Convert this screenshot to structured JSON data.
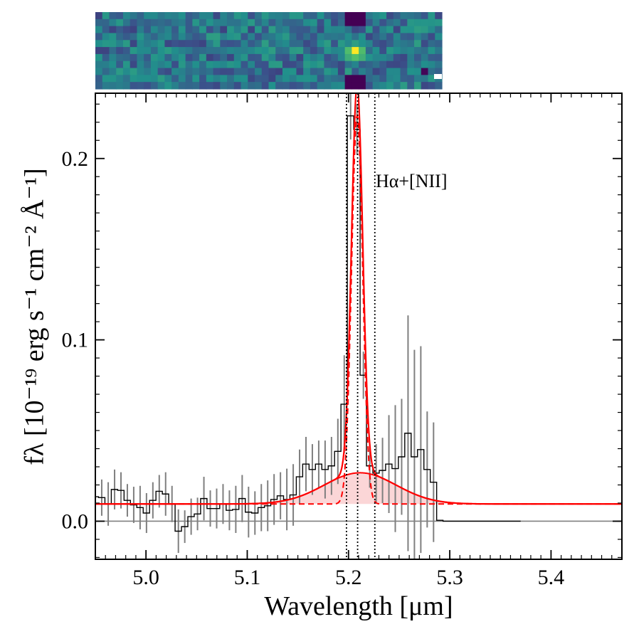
{
  "chart_data": {
    "type": "line",
    "title": "",
    "xlabel": "Wavelength [μm]",
    "ylabel": "f_λ [10^{-19} erg s^{-1} cm^{-2} Å^{-1}]",
    "ylabel_display": "fλ [10⁻¹⁹ erg s⁻¹ cm⁻² Å⁻¹]",
    "xlim": [
      4.95,
      5.47
    ],
    "ylim": [
      -0.021,
      0.236
    ],
    "x_ticks": [
      5.0,
      5.1,
      5.2,
      5.3,
      5.4
    ],
    "x_tick_labels": [
      "5.0",
      "5.1",
      "5.2",
      "5.3",
      "5.4"
    ],
    "y_ticks": [
      0.0,
      0.1,
      0.2
    ],
    "y_tick_labels": [
      "0.0",
      "0.1",
      "0.2"
    ],
    "annotation": "Hα+[NII]",
    "vertical_lines": [
      5.198,
      5.209,
      5.226
    ],
    "colors": {
      "data": "#000000",
      "error": "#7f7f7f",
      "model": "#ff0000",
      "broad_fill": "#f9c4c6",
      "zero_line": "#808080",
      "vline": "#000000"
    },
    "model": {
      "continuum": 0.0095,
      "narrow_amplitude": 0.214,
      "narrow_center": 5.2085,
      "narrow_sigma": 0.0055,
      "broad_amplitude": 0.0172,
      "broad_center": 5.2115,
      "broad_sigma": 0.0355
    },
    "series": [
      {
        "name": "spectrum",
        "x": [
          4.95,
          4.9563,
          4.9627,
          4.969,
          4.9753,
          4.9816,
          4.9879,
          4.9942,
          5.0005,
          5.0068,
          5.0131,
          5.0194,
          5.0257,
          5.032,
          5.0383,
          5.0446,
          5.0509,
          5.0572,
          5.0635,
          5.0698,
          5.0761,
          5.0824,
          5.0887,
          5.095,
          5.1013,
          5.1076,
          5.1139,
          5.1202,
          5.1265,
          5.1328,
          5.1391,
          5.1454,
          5.1517,
          5.158,
          5.1643,
          5.1706,
          5.1769,
          5.1832,
          5.1895,
          5.1958,
          5.2021,
          5.2084,
          5.2147,
          5.221,
          5.2273,
          5.2336,
          5.2399,
          5.2462,
          5.2525,
          5.2588,
          5.2651,
          5.2714,
          5.2777,
          5.284,
          5.2903
        ],
        "y": [
          0.0135,
          0.013,
          0.0095,
          0.0175,
          0.017,
          0.0115,
          0.009,
          0.0075,
          0.0045,
          0.0115,
          0.0165,
          0.015,
          0.0095,
          -0.0055,
          -0.003,
          0.0025,
          0.004,
          0.0125,
          0.007,
          0.007,
          0.0095,
          0.006,
          0.0065,
          0.0125,
          0.005,
          0.0045,
          0.0075,
          0.0085,
          0.012,
          0.014,
          0.012,
          0.0145,
          0.0245,
          0.0315,
          0.0285,
          0.0315,
          0.0285,
          0.0305,
          0.0385,
          0.0645,
          0.2235,
          0.216,
          0.0805,
          0.0305,
          0.0265,
          0.028,
          0.0315,
          0.029,
          0.0355,
          0.0485,
          0.0355,
          0.0395,
          0.0285,
          0.0215,
          0.0005
        ],
        "yerr": [
          0.009,
          0.01,
          0.012,
          0.011,
          0.01,
          0.009,
          0.01,
          0.012,
          0.011,
          0.01,
          0.009,
          0.012,
          0.01,
          0.012,
          0.009,
          0.01,
          0.009,
          0.012,
          0.01,
          0.011,
          0.011,
          0.011,
          0.013,
          0.013,
          0.014,
          0.012,
          0.013,
          0.014,
          0.014,
          0.013,
          0.017,
          0.017,
          0.015,
          0.015,
          0.014,
          0.013,
          0.016,
          0.016,
          0.018,
          0.027,
          0.013,
          0.014,
          0.013,
          0.012,
          0.016,
          0.018,
          0.027,
          0.035,
          0.032,
          0.065,
          0.059,
          0.057,
          0.032,
          0.033,
          0.0
        ]
      }
    ]
  },
  "cutout": {
    "description_colors": [
      "#440154",
      "#3b528b",
      "#21918c",
      "#5ec962",
      "#fde725"
    ]
  }
}
